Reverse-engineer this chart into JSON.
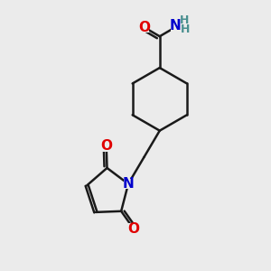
{
  "bg_color": "#ebebeb",
  "bond_color": "#1a1a1a",
  "bond_width": 1.8,
  "atom_colors": {
    "O": "#e00000",
    "N": "#0000cc",
    "H": "#4a9090",
    "C": "#1a1a1a"
  },
  "font_size_atom": 11,
  "font_size_H": 9
}
